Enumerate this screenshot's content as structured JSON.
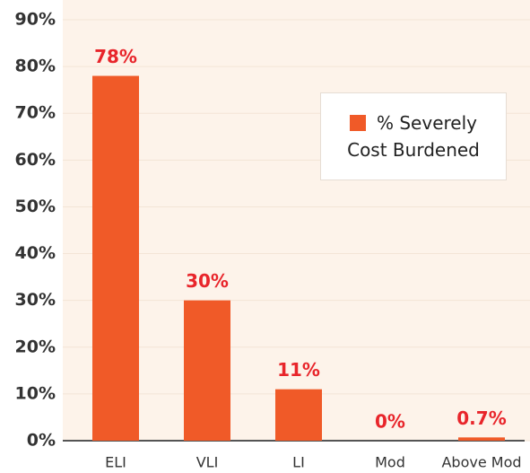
{
  "chart_data": {
    "type": "bar",
    "categories": [
      "ELI",
      "VLI",
      "LI",
      "Mod",
      "Above Mod"
    ],
    "series": [
      {
        "name": "% Severely Cost Burdened",
        "color": "#f05a28",
        "values": [
          78,
          30,
          11,
          0,
          0.7
        ],
        "value_labels": [
          "78%",
          "30%",
          "11%",
          "0%",
          "0.7%"
        ]
      }
    ],
    "ylim": [
      0,
      90
    ],
    "yticks": [
      {
        "value": 0,
        "label": "0%"
      },
      {
        "value": 10,
        "label": "10%"
      },
      {
        "value": 20,
        "label": "20%"
      },
      {
        "value": 30,
        "label": "30%"
      },
      {
        "value": 40,
        "label": "40%"
      },
      {
        "value": 50,
        "label": "50%"
      },
      {
        "value": 60,
        "label": "60%"
      },
      {
        "value": 70,
        "label": "70%"
      },
      {
        "value": 80,
        "label": "80%"
      },
      {
        "value": 90,
        "label": "90%"
      }
    ],
    "grid": true,
    "legend": "upper right"
  }
}
